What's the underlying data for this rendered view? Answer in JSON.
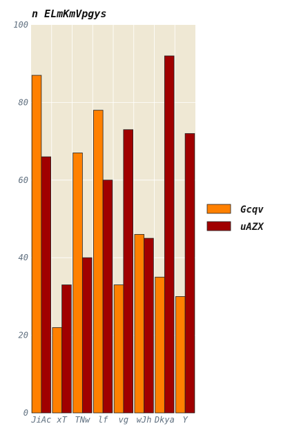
{
  "chart_data": {
    "type": "bar",
    "title": "n ELmKmVpgys",
    "xlabel": "",
    "ylabel": "",
    "categories": [
      "JiAc",
      "xT",
      "TNw",
      "lf",
      "vg",
      "wJh",
      "Dkya",
      "Y"
    ],
    "series": [
      {
        "name": "Gcqv",
        "color": "#ff8000",
        "values": [
          87,
          22,
          67,
          78,
          33,
          46,
          35,
          30
        ]
      },
      {
        "name": "uAZX",
        "color": "#a00000",
        "values": [
          66,
          33,
          40,
          60,
          73,
          45,
          92,
          72
        ]
      }
    ],
    "ylim": [
      0,
      100
    ],
    "yticks": [
      0,
      20,
      40,
      60,
      80,
      100
    ],
    "grid": true,
    "legend_position": "right",
    "plot_background": "#efe8d4"
  }
}
